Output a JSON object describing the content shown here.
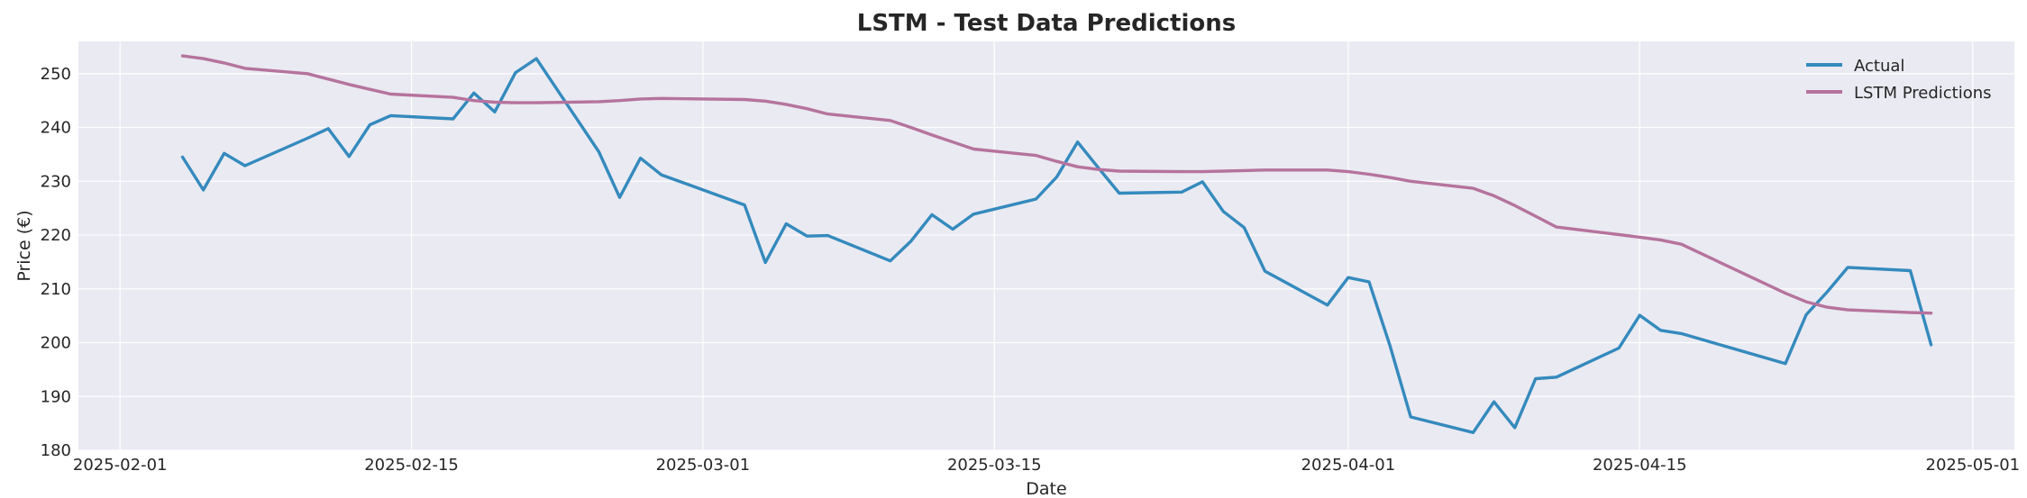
{
  "chart_data": {
    "type": "line",
    "title": "LSTM - Test Data Predictions",
    "xlabel": "Date",
    "ylabel": "Price (€)",
    "xlim": [
      "2025-01-30",
      "2025-05-03"
    ],
    "ylim": [
      180,
      256
    ],
    "x_ticks": [
      "2025-02-01",
      "2025-02-15",
      "2025-03-01",
      "2025-03-15",
      "2025-04-01",
      "2025-04-15",
      "2025-05-01"
    ],
    "y_ticks": [
      180,
      190,
      200,
      210,
      220,
      230,
      240,
      250
    ],
    "grid": true,
    "legend_position": "top-right",
    "dates": [
      "2025-02-04",
      "2025-02-05",
      "2025-02-06",
      "2025-02-07",
      "2025-02-10",
      "2025-02-11",
      "2025-02-12",
      "2025-02-13",
      "2025-02-14",
      "2025-02-17",
      "2025-02-18",
      "2025-02-19",
      "2025-02-20",
      "2025-02-21",
      "2025-02-24",
      "2025-02-25",
      "2025-02-26",
      "2025-02-27",
      "2025-03-03",
      "2025-03-04",
      "2025-03-05",
      "2025-03-06",
      "2025-03-07",
      "2025-03-10",
      "2025-03-11",
      "2025-03-12",
      "2025-03-13",
      "2025-03-14",
      "2025-03-17",
      "2025-03-18",
      "2025-03-19",
      "2025-03-20",
      "2025-03-21",
      "2025-03-24",
      "2025-03-25",
      "2025-03-26",
      "2025-03-27",
      "2025-03-28",
      "2025-03-31",
      "2025-04-01",
      "2025-04-02",
      "2025-04-03",
      "2025-04-04",
      "2025-04-07",
      "2025-04-08",
      "2025-04-09",
      "2025-04-10",
      "2025-04-11",
      "2025-04-14",
      "2025-04-15",
      "2025-04-16",
      "2025-04-17",
      "2025-04-22",
      "2025-04-23",
      "2025-04-24",
      "2025-04-25",
      "2025-04-28",
      "2025-04-29"
    ],
    "series": [
      {
        "name": "Actual",
        "color": "#348abd",
        "values": [
          234.5,
          228.4,
          235.2,
          232.9,
          238.0,
          239.8,
          234.6,
          240.5,
          242.2,
          241.6,
          246.4,
          242.9,
          250.2,
          252.8,
          235.5,
          227.0,
          234.3,
          231.2,
          225.6,
          214.9,
          222.1,
          219.8,
          219.9,
          215.2,
          218.9,
          223.8,
          221.1,
          223.9,
          226.7,
          230.8,
          237.3,
          232.5,
          227.8,
          228.0,
          229.9,
          224.4,
          221.4,
          213.3,
          207.0,
          212.1,
          211.3,
          199.5,
          186.2,
          183.3,
          189.0,
          184.2,
          193.3,
          193.6,
          199.0,
          205.1,
          202.3,
          201.7,
          196.1,
          205.2,
          209.4,
          214.0,
          213.4,
          199.6
        ]
      },
      {
        "name": "LSTM Predictions",
        "color": "#b5739d",
        "values": [
          253.3,
          252.8,
          252.0,
          251.0,
          250.0,
          249.0,
          248.0,
          247.1,
          246.2,
          245.6,
          245.0,
          244.7,
          244.6,
          244.6,
          244.8,
          245.0,
          245.3,
          245.4,
          245.2,
          244.9,
          244.3,
          243.5,
          242.5,
          241.3,
          240.0,
          238.6,
          237.3,
          236.0,
          234.8,
          233.7,
          232.7,
          232.2,
          231.9,
          231.8,
          231.8,
          231.9,
          232.0,
          232.1,
          232.1,
          231.8,
          231.3,
          230.7,
          230.0,
          228.7,
          227.3,
          225.5,
          223.5,
          221.5,
          220.1,
          219.6,
          219.1,
          218.3,
          209.2,
          207.6,
          206.6,
          206.1,
          205.6,
          205.5
        ]
      }
    ]
  }
}
